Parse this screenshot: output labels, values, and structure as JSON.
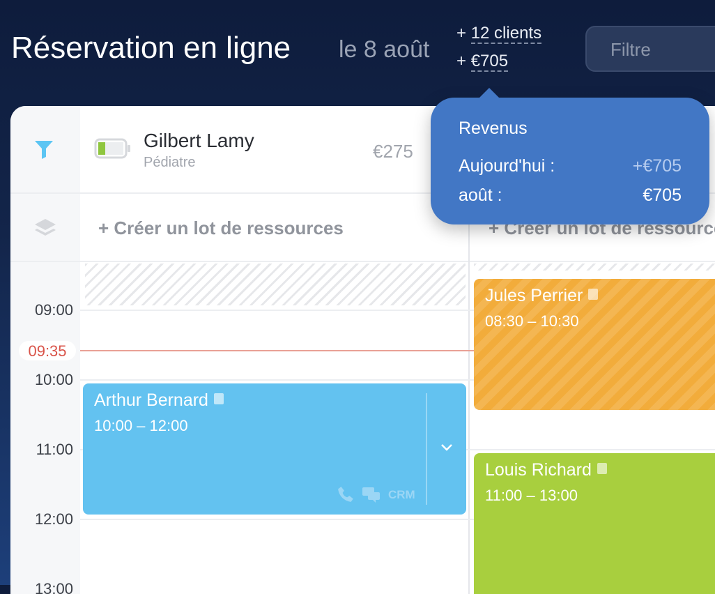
{
  "header": {
    "title": "Réservation en ligne",
    "date": "le 8 août",
    "clients": "12 clients",
    "revenue": "€705",
    "plus": "+",
    "filter_placeholder": "Filtre"
  },
  "tooltip": {
    "title": "Revenus",
    "rows": [
      {
        "label": "Aujourd'hui :",
        "value": "+€705"
      },
      {
        "label": "août :",
        "value": "€705"
      }
    ]
  },
  "resource": {
    "name": "Gilbert Lamy",
    "role": "Pédiatre",
    "amount": "€275",
    "battery_level": 0.25
  },
  "create_batch": "+ Créer un lot de ressources",
  "times": [
    "09:00",
    "10:00",
    "11:00",
    "12:00",
    "13:00"
  ],
  "current_time": "09:35",
  "events": [
    {
      "name": "Jules Perrier",
      "time": "08:30 – 10:30",
      "color": "#f2ac3b"
    },
    {
      "name": "Arthur Bernard",
      "time": "10:00 – 12:00",
      "color": "#63c2f0",
      "crm": "CRM"
    },
    {
      "name": "Louis Richard",
      "time": "11:00 – 13:00",
      "color": "#a8cf3e"
    }
  ],
  "colors": {
    "accent": "#4277c5",
    "now_line": "#e9a196",
    "now_text": "#d9544a"
  }
}
